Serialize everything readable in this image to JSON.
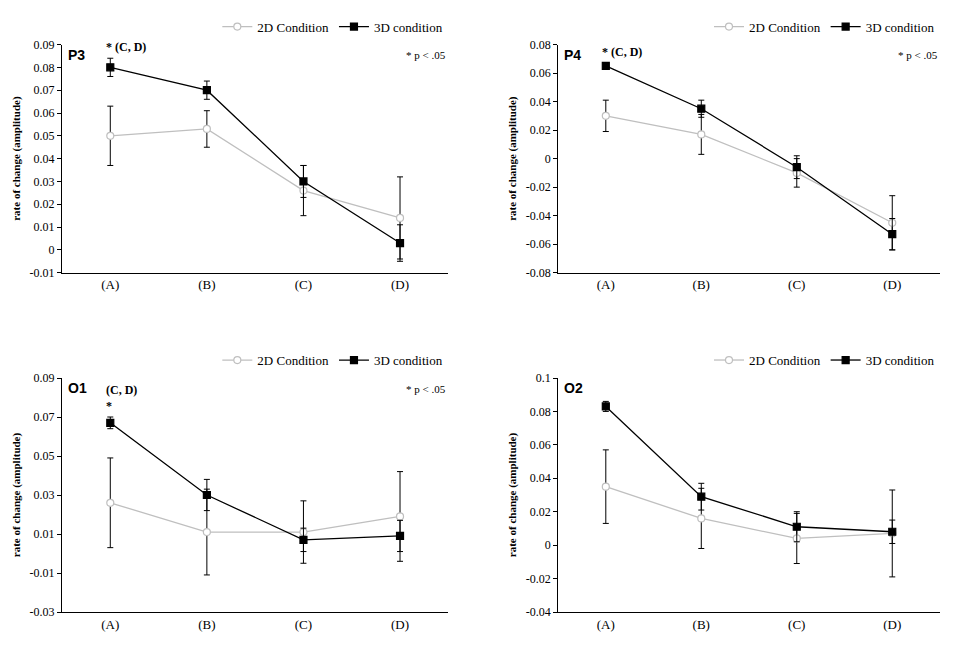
{
  "chart_data": [
    {
      "type": "line",
      "title": "P3",
      "ylabel": "rate of change (amplitude)",
      "categories": [
        "(A)",
        "(B)",
        "(C)",
        "(D)"
      ],
      "ylim": [
        -0.01,
        0.09
      ],
      "yticks": [
        -0.01,
        0,
        0.01,
        0.02,
        0.03,
        0.04,
        0.05,
        0.06,
        0.07,
        0.08,
        0.09
      ],
      "grid": false,
      "series": [
        {
          "name": "2D Condition",
          "color": "#bfbfbf",
          "marker": "circle-open",
          "values": [
            0.05,
            0.053,
            0.026,
            0.014
          ],
          "error": [
            0.013,
            0.008,
            0.011,
            0.018
          ]
        },
        {
          "name": "3D condition",
          "color": "#000000",
          "marker": "square",
          "values": [
            0.08,
            0.07,
            0.03,
            0.003
          ],
          "error": [
            0.004,
            0.004,
            0.007,
            0.008
          ]
        }
      ],
      "annotations": [
        {
          "text": "* (C, D)",
          "category": "(A)"
        }
      ],
      "note": "* p < .05"
    },
    {
      "type": "line",
      "title": "P4",
      "ylabel": "rate of change (amplitude)",
      "categories": [
        "(A)",
        "(B)",
        "(C)",
        "(D)"
      ],
      "ylim": [
        -0.08,
        0.08
      ],
      "yticks": [
        -0.08,
        -0.06,
        -0.04,
        -0.02,
        0,
        0.02,
        0.04,
        0.06,
        0.08
      ],
      "grid": false,
      "series": [
        {
          "name": "2D Condition",
          "color": "#bfbfbf",
          "marker": "circle-open",
          "values": [
            0.03,
            0.017,
            -0.01,
            -0.045
          ],
          "error": [
            0.011,
            0.014,
            0.01,
            0.019
          ]
        },
        {
          "name": "3D condition",
          "color": "#000000",
          "marker": "square",
          "values": [
            0.065,
            0.035,
            -0.006,
            -0.053
          ],
          "error": [
            0.002,
            0.006,
            0.008,
            0.011
          ]
        }
      ],
      "annotations": [
        {
          "text": "* (C, D)",
          "category": "(A)"
        }
      ],
      "note": "* p < .05"
    },
    {
      "type": "line",
      "title": "O1",
      "ylabel": "rate of change (amplitude)",
      "categories": [
        "(A)",
        "(B)",
        "(C)",
        "(D)"
      ],
      "ylim": [
        -0.03,
        0.09
      ],
      "yticks": [
        -0.03,
        -0.01,
        0.01,
        0.03,
        0.05,
        0.07,
        0.09
      ],
      "grid": false,
      "series": [
        {
          "name": "2D Condition",
          "color": "#bfbfbf",
          "marker": "circle-open",
          "values": [
            0.026,
            0.011,
            0.011,
            0.019
          ],
          "error": [
            0.023,
            0.022,
            0.016,
            0.023
          ]
        },
        {
          "name": "3D condition",
          "color": "#000000",
          "marker": "square",
          "values": [
            0.067,
            0.03,
            0.007,
            0.009
          ],
          "error": [
            0.003,
            0.008,
            0.006,
            0.008
          ]
        }
      ],
      "annotations": [
        {
          "text": "(C, D)\n*",
          "category": "(A)"
        }
      ],
      "note": "* p < .05"
    },
    {
      "type": "line",
      "title": "O2",
      "ylabel": "rate of change (amplitude)",
      "categories": [
        "(A)",
        "(B)",
        "(C)",
        "(D)"
      ],
      "ylim": [
        -0.04,
        0.1
      ],
      "yticks": [
        -0.04,
        -0.02,
        0,
        0.02,
        0.04,
        0.06,
        0.08,
        0.1
      ],
      "grid": false,
      "series": [
        {
          "name": "2D Condition",
          "color": "#bfbfbf",
          "marker": "circle-open",
          "values": [
            0.035,
            0.016,
            0.004,
            0.007
          ],
          "error": [
            0.022,
            0.018,
            0.015,
            0.026
          ]
        },
        {
          "name": "3D condition",
          "color": "#000000",
          "marker": "square",
          "values": [
            0.083,
            0.029,
            0.011,
            0.008
          ],
          "error": [
            0.003,
            0.008,
            0.009,
            0.007
          ]
        }
      ]
    }
  ]
}
